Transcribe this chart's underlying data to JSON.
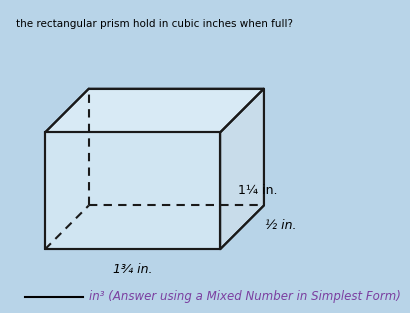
{
  "bg_color": "#b8d4e8",
  "top_text": "the rectangular prism hold in cubic inches when full?",
  "bottom_text": "in³ (Answer using a Mixed Number in Simplest Form)",
  "label_height": "1¼ in.",
  "label_length": "1¾ in.",
  "label_depth": "½ in.",
  "prism_face_color": "#d0e5f2",
  "prism_top_color": "#d8eaf5",
  "prism_right_color": "#c8dcea",
  "prism_edge_color": "#1a1a1a",
  "line_width": 1.5,
  "dashed_color": "#1a1a1a",
  "answer_line_color": "#000000",
  "bottom_text_color": "#7b3fa0"
}
